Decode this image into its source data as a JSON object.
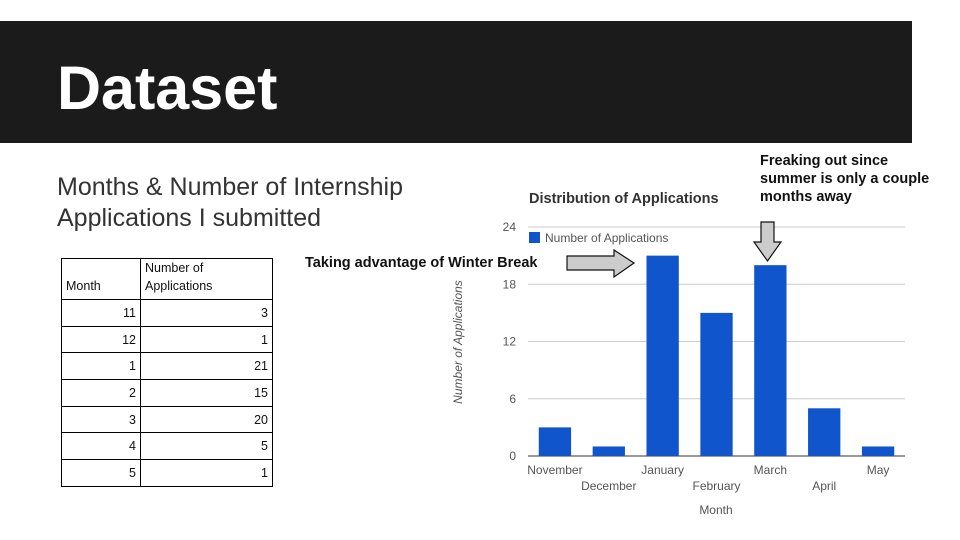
{
  "slide": {
    "title": "Dataset",
    "subtitle": "Months & Number of Internship Applications I submitted"
  },
  "table": {
    "headers": [
      "Month",
      "Number of Applications"
    ],
    "rows": [
      [
        "11",
        "3"
      ],
      [
        "12",
        "1"
      ],
      [
        "1",
        "21"
      ],
      [
        "2",
        "15"
      ],
      [
        "3",
        "20"
      ],
      [
        "4",
        "5"
      ],
      [
        "5",
        "1"
      ]
    ]
  },
  "annotations": {
    "winter_break": "Taking advantage of Winter Break",
    "summer": "Freaking out since summer is only a couple months away"
  },
  "colors": {
    "bar": "#1155cc",
    "grid": "#cccccc",
    "title_bar": "#1b1b1b",
    "arrow_fill": "#cccccc"
  },
  "chart_data": {
    "type": "bar",
    "title": "Distribution of Applications",
    "xlabel": "Month",
    "ylabel": "Number of Applications",
    "categories": [
      "November",
      "December",
      "January",
      "February",
      "March",
      "April",
      "May"
    ],
    "series": [
      {
        "name": "Number of Applications",
        "values": [
          3,
          1,
          21,
          15,
          20,
          5,
          1
        ]
      }
    ],
    "ylim": [
      0,
      24
    ],
    "yticks": [
      0,
      6,
      12,
      18,
      24
    ],
    "grid": true,
    "legend_position": "top-left"
  }
}
